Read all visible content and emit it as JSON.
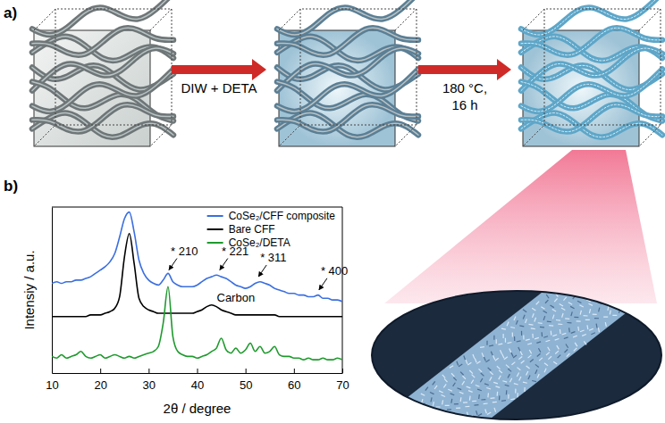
{
  "diagram": {
    "panel_labels": [
      "a)",
      "b)"
    ],
    "steps": [
      {
        "label": [
          "DIW + DETA"
        ]
      },
      {
        "label": [
          "180 °C,",
          "16 h"
        ]
      }
    ]
  },
  "chart_data": {
    "type": "line",
    "xlabel": "2θ / degree",
    "ylabel": "Intensiy / a.u.",
    "xlim": [
      10,
      70
    ],
    "ylim": [
      0,
      100
    ],
    "xticks": [
      10,
      20,
      30,
      40,
      50,
      60,
      70
    ],
    "tick_labels": "x",
    "grid": false,
    "legend": "upper right",
    "x": [
      10,
      11,
      12,
      13,
      14,
      15,
      16,
      17,
      18,
      19,
      20,
      21,
      22,
      23,
      24,
      25,
      26,
      27,
      28,
      29,
      30,
      31,
      32,
      33,
      34,
      35,
      36,
      37,
      38,
      39,
      40,
      41,
      42,
      43,
      44,
      45,
      46,
      47,
      48,
      49,
      50,
      51,
      52,
      53,
      54,
      55,
      56,
      57,
      58,
      59,
      60,
      61,
      62,
      63,
      64,
      65,
      66,
      67,
      68,
      69,
      70
    ],
    "series": [
      {
        "name": "CoSe₂/CFF composite",
        "color": "#3b6fe0",
        "values": [
          54,
          55,
          54,
          55,
          55,
          56,
          56,
          57,
          58,
          60,
          62,
          64,
          67,
          72,
          82,
          93,
          97,
          85,
          68,
          60,
          56,
          54,
          53,
          56,
          60,
          55,
          53,
          52,
          52,
          52,
          53,
          55,
          57,
          58,
          59,
          58,
          57,
          55,
          53,
          52,
          51,
          52,
          54,
          55,
          54,
          53,
          51,
          50,
          49,
          48,
          48,
          47,
          47,
          46,
          46,
          47,
          45,
          45,
          44,
          44,
          43
        ]
      },
      {
        "name": "Bare CFF",
        "color": "#000000",
        "values": [
          34,
          34,
          34,
          34,
          34,
          34,
          34,
          34,
          35,
          35,
          35,
          36,
          37,
          39,
          46,
          70,
          84,
          66,
          45,
          40,
          38,
          37,
          36,
          36,
          36,
          36,
          36,
          36,
          36,
          36,
          37,
          38,
          40,
          41,
          40,
          38,
          37,
          36,
          35,
          35,
          35,
          35,
          35,
          35,
          35,
          35,
          35,
          34,
          34,
          34,
          34,
          34,
          34,
          34,
          34,
          34,
          34,
          34,
          34,
          34,
          34
        ]
      },
      {
        "name": "CoSe₂/DETA",
        "color": "#1f9a2e",
        "values": [
          10,
          9,
          11,
          9,
          10,
          11,
          13,
          10,
          9,
          10,
          11,
          9,
          10,
          11,
          10,
          9,
          10,
          9,
          10,
          11,
          12,
          13,
          16,
          30,
          52,
          22,
          13,
          11,
          10,
          10,
          9,
          10,
          11,
          13,
          15,
          21,
          14,
          12,
          15,
          12,
          14,
          18,
          13,
          16,
          12,
          13,
          16,
          11,
          10,
          10,
          9,
          9,
          8,
          9,
          8,
          8,
          9,
          8,
          8,
          9,
          8
        ]
      }
    ],
    "peak_labels": [
      {
        "text": "* 210",
        "x": 34,
        "y": 61
      },
      {
        "text": "* 221",
        "x": 44.5,
        "y": 61
      },
      {
        "text": "* 311",
        "x": 52.5,
        "y": 57
      },
      {
        "text": "* 400",
        "x": 65,
        "y": 49
      }
    ],
    "annotations": [
      {
        "text": "Carbon",
        "x": 48,
        "y": 43
      }
    ]
  }
}
